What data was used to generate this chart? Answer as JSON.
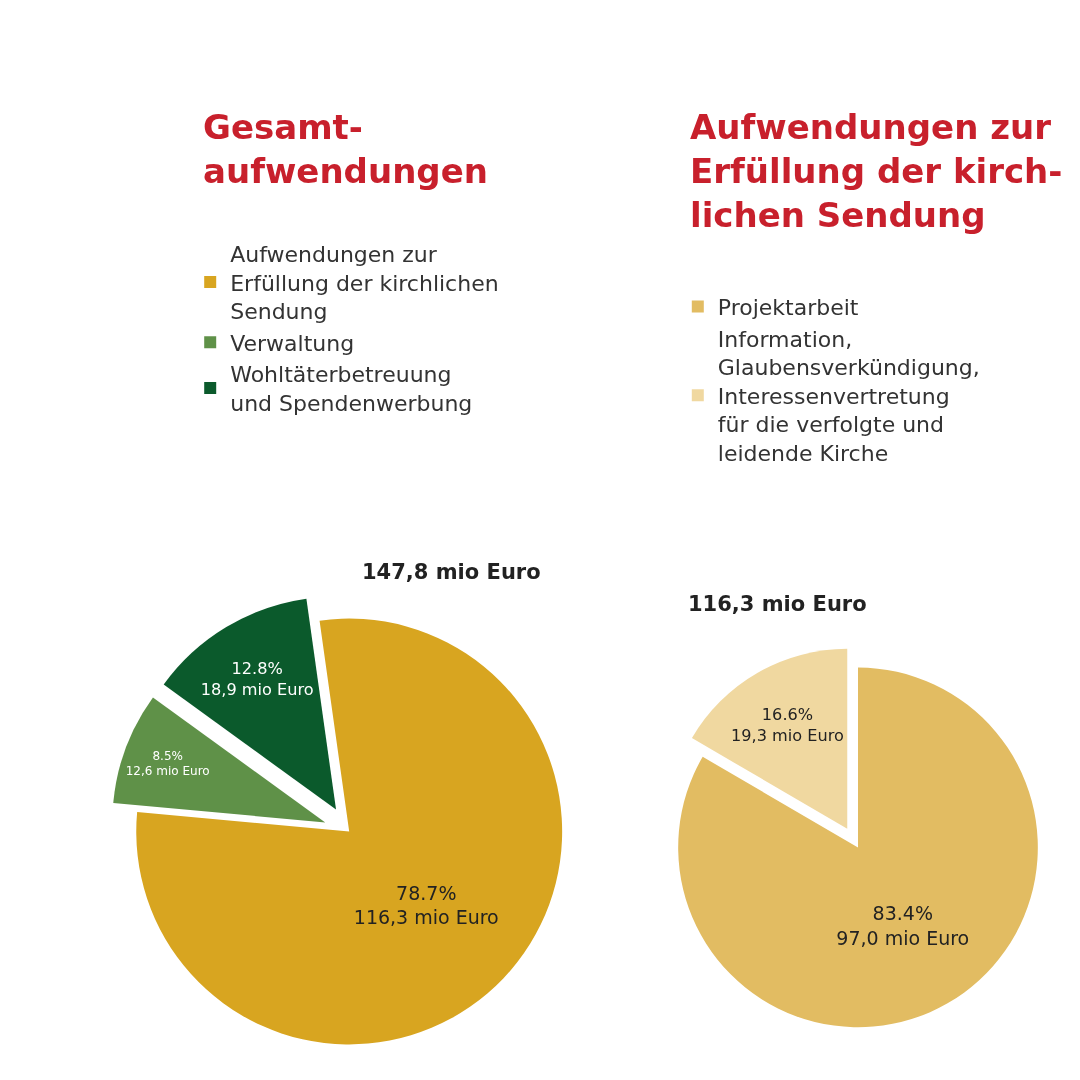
{
  "chart_data": [
    {
      "type": "pie",
      "title": "Gesamt-\naufwendungen",
      "categories": [
        "Aufwendungen zur\nErfüllung der kirchlichen\nSendung",
        "Verwaltung",
        "Wohltäterbetreuung\nund Spendenwerbung"
      ],
      "values": [
        116.3,
        12.6,
        18.9
      ],
      "colors": [
        "#d8a520",
        "#5f9148",
        "#0b5a2c"
      ],
      "value_labels": [
        "78.7%\n116,3 mio Euro",
        "8.5%\n12,6 mio Euro",
        "12.8%\n18,9 mio Euro"
      ],
      "annotations": [
        "147,8 mio Euro"
      ],
      "legend": "top"
    },
    {
      "type": "pie",
      "title": "Aufwendungen zur\nErfüllung der kirch-\nlichen Sendung",
      "categories": [
        "Projektarbeit",
        "Information,\nGlaubensverkündigung,\nInteressenvertretung\nfür die verfolgte und\nleidende Kirche"
      ],
      "values": [
        97.0,
        19.3
      ],
      "colors": [
        "#e2bc62",
        "#f0d8a0"
      ],
      "value_labels": [
        "83.4%\n97,0 mio Euro",
        "16.6%\n19,3 mio Euro"
      ],
      "annotations": [
        "116,3 mio Euro"
      ],
      "legend": "top"
    }
  ]
}
